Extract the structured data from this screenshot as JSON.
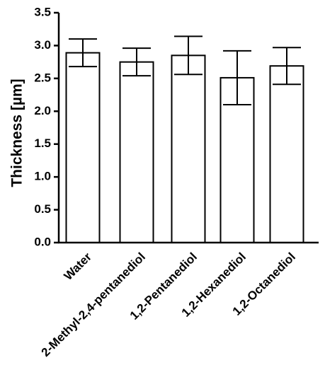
{
  "chart_data": {
    "type": "bar",
    "title": "",
    "xlabel": "",
    "ylabel": "Thickness [µm]",
    "ylim": [
      0,
      3.5
    ],
    "yticks": [
      "0.0",
      "0.5",
      "1.0",
      "1.5",
      "2.0",
      "2.5",
      "3.0",
      "3.5"
    ],
    "categories": [
      "Water",
      "2-Methyl-2,4-pentanediol",
      "1,2-Pentanediol",
      "1,2-Hexanediol",
      "1,2-Octanediol"
    ],
    "values": [
      2.89,
      2.75,
      2.85,
      2.51,
      2.69
    ],
    "errors": [
      0.21,
      0.21,
      0.29,
      0.41,
      0.28
    ],
    "grid": false,
    "legend": "none",
    "colors": {
      "bar_fill": "#ffffff",
      "bar_stroke": "#000000"
    }
  }
}
